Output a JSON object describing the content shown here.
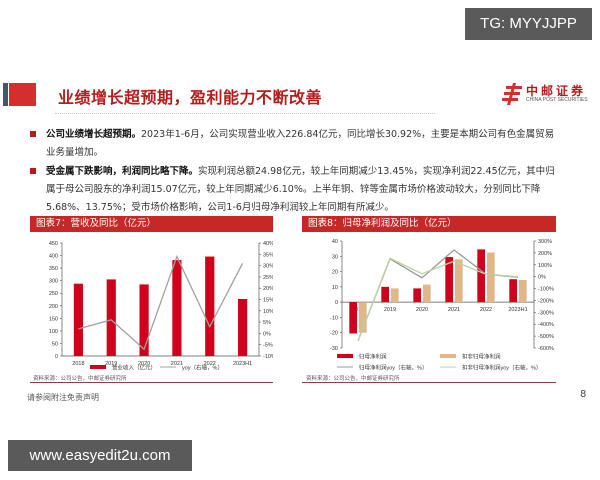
{
  "watermarks": {
    "top": "TG: MYYJJPP",
    "bottom": "www.easyedit2u.com"
  },
  "header": {
    "title": "业绩增长超预期，盈利能力不断改善",
    "logo": {
      "cn": "中邮证券",
      "en": "CHINA POST SECURITIES",
      "icon": "china-post-logo-icon"
    },
    "colors": {
      "accent": "#d32f2f",
      "title": "#b71c1c",
      "dark_block": "#4a5568"
    }
  },
  "bullets": [
    {
      "lead": "公司业绩增长超预期。",
      "text": "2023年1-6月，公司实现营业收入226.84亿元，同比增长30.92%，主要是本期公司有色金属贸易业务量增加。"
    },
    {
      "lead": "受金属下跌影响，利润同比略下降。",
      "text": "实现利润总额24.98亿元，较上年同期减少13.45%，实现净利润22.45亿元，其中归属于母公司股东的净利润15.07亿元，较上年同期减少6.10%。上半年铜、锌等金属市场价格波动较大，分别同比下降5.68%、13.75%；受市场价格影响，公司1-6月归母净利润较上年同期有所减少。"
    }
  ],
  "chart_data": [
    {
      "type": "bar",
      "title": "图表7：营收及同比（亿元）",
      "categories": [
        "2018",
        "2019",
        "2020",
        "2021",
        "2022",
        "2023H1"
      ],
      "series": [
        {
          "name": "营业收入（亿元）",
          "type": "bar",
          "axis": "left",
          "color": "#d0021b",
          "values": [
            288,
            305,
            285,
            382,
            396,
            227
          ]
        },
        {
          "name": "yoy（右轴，%）",
          "type": "line",
          "axis": "right",
          "color": "#a0a0a0",
          "values": [
            2,
            6,
            -7,
            34,
            3,
            31
          ]
        }
      ],
      "ylim_left": [
        0,
        450
      ],
      "yticks_left": [
        "0",
        "50",
        "100",
        "150",
        "200",
        "250",
        "300",
        "350",
        "400",
        "450"
      ],
      "ylim_right": [
        -10,
        40
      ],
      "yticks_right": [
        "-10%",
        "-5%",
        "0%",
        "5%",
        "10%",
        "15%",
        "20%",
        "25%",
        "30%",
        "35%",
        "40%"
      ],
      "legend_position": "bottom",
      "grid": false,
      "source": "资料来源：公司公告，中邮证券研究所"
    },
    {
      "type": "bar",
      "title": "图表8：归母净利润及同比（亿元）",
      "categories": [
        "2018",
        "2019",
        "2020",
        "2021",
        "2022",
        "2023H1"
      ],
      "series": [
        {
          "name": "归母净利润",
          "type": "bar",
          "axis": "left",
          "color": "#d0021b",
          "values": [
            -20.5,
            10,
            9,
            29.5,
            34.5,
            15
          ]
        },
        {
          "name": "扣非归母净利润",
          "type": "bar",
          "axis": "left",
          "color": "#e0b887",
          "values": [
            -20,
            9,
            11.5,
            28,
            32.5,
            14.5
          ]
        },
        {
          "name": "归母净利润yoy（右轴，%）",
          "type": "line",
          "axis": "right",
          "color": "#999999",
          "values": [
            -540,
            150,
            -10,
            225,
            20,
            -5
          ]
        },
        {
          "name": "扣非归母净利润yoy（右轴，%）",
          "type": "line",
          "axis": "right",
          "color": "#b8d4a0",
          "values": [
            -540,
            155,
            25,
            130,
            20,
            0
          ]
        }
      ],
      "ylim_left": [
        -30,
        40
      ],
      "yticks_left": [
        "-30",
        "-20",
        "-10",
        "0",
        "10",
        "20",
        "30",
        "40"
      ],
      "ylim_right": [
        -600,
        300
      ],
      "yticks_right": [
        "-600%",
        "-500%",
        "-400%",
        "-300%",
        "-200%",
        "-100%",
        "0%",
        "100%",
        "200%",
        "300%"
      ],
      "legend_position": "bottom",
      "grid": false,
      "source": "资料来源：公司公告，中邮证券研究所"
    }
  ],
  "footer": {
    "disclaimer": "请参阅附注免责声明",
    "page": "8"
  }
}
